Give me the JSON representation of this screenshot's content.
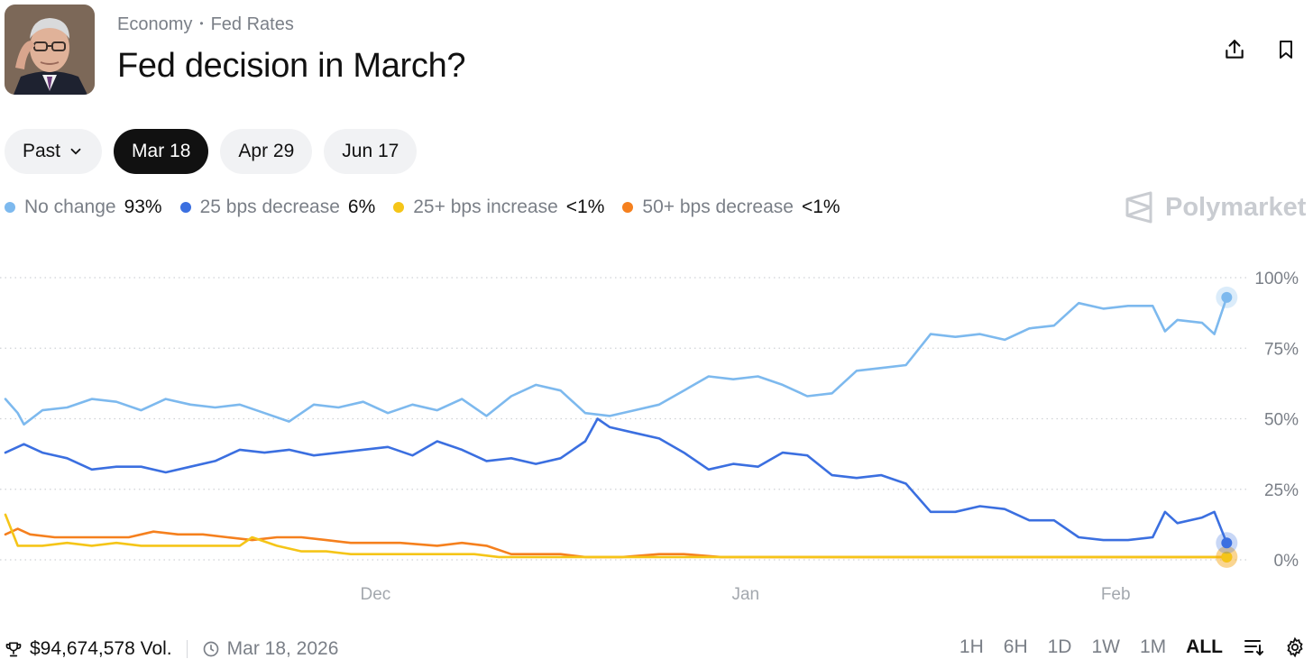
{
  "header": {
    "breadcrumb": [
      "Economy",
      "Fed Rates"
    ],
    "title": "Fed decision in March?"
  },
  "tabs": {
    "past_label": "Past",
    "dates": [
      "Mar 18",
      "Apr 29",
      "Jun 17"
    ],
    "active_index": 0
  },
  "legend": [
    {
      "name": "No change",
      "value": "93%",
      "color": "#7db9ee"
    },
    {
      "name": "25 bps decrease",
      "value": "6%",
      "color": "#3b6fe0"
    },
    {
      "name": "25+ bps increase",
      "value": "<1%",
      "color": "#f5c518"
    },
    {
      "name": "50+ bps decrease",
      "value": "<1%",
      "color": "#f5801e"
    }
  ],
  "brand": "Polymarket",
  "chart_data": {
    "type": "line",
    "title": "",
    "xlabel": "",
    "ylabel": "",
    "x_tick_labels": [
      "Dec",
      "Jan",
      "Feb"
    ],
    "y_tick_labels": [
      "100%",
      "75%",
      "50%",
      "25%",
      "0%"
    ],
    "ylim": [
      0,
      100
    ],
    "xlim": [
      0,
      100
    ],
    "x_ticks": [
      30,
      60,
      90
    ],
    "series": [
      {
        "name": "No change",
        "color": "#7db9ee",
        "points": [
          [
            0,
            57
          ],
          [
            1,
            52
          ],
          [
            1.5,
            48
          ],
          [
            3,
            53
          ],
          [
            5,
            54
          ],
          [
            7,
            57
          ],
          [
            9,
            56
          ],
          [
            11,
            53
          ],
          [
            13,
            57
          ],
          [
            15,
            55
          ],
          [
            17,
            54
          ],
          [
            19,
            55
          ],
          [
            21,
            52
          ],
          [
            23,
            49
          ],
          [
            25,
            55
          ],
          [
            27,
            54
          ],
          [
            29,
            56
          ],
          [
            31,
            52
          ],
          [
            33,
            55
          ],
          [
            35,
            53
          ],
          [
            37,
            57
          ],
          [
            39,
            51
          ],
          [
            41,
            58
          ],
          [
            43,
            62
          ],
          [
            45,
            60
          ],
          [
            47,
            52
          ],
          [
            49,
            51
          ],
          [
            51,
            53
          ],
          [
            53,
            55
          ],
          [
            55,
            60
          ],
          [
            57,
            65
          ],
          [
            59,
            64
          ],
          [
            61,
            65
          ],
          [
            63,
            62
          ],
          [
            65,
            58
          ],
          [
            67,
            59
          ],
          [
            69,
            67
          ],
          [
            71,
            68
          ],
          [
            73,
            69
          ],
          [
            75,
            80
          ],
          [
            77,
            79
          ],
          [
            79,
            80
          ],
          [
            81,
            78
          ],
          [
            83,
            82
          ],
          [
            85,
            83
          ],
          [
            87,
            91
          ],
          [
            89,
            89
          ],
          [
            91,
            90
          ],
          [
            93,
            90
          ],
          [
            94,
            81
          ],
          [
            95,
            85
          ],
          [
            97,
            84
          ],
          [
            98,
            80
          ],
          [
            99,
            93
          ]
        ]
      },
      {
        "name": "25 bps decrease",
        "color": "#3b6fe0",
        "points": [
          [
            0,
            38
          ],
          [
            1.5,
            41
          ],
          [
            3,
            38
          ],
          [
            5,
            36
          ],
          [
            7,
            32
          ],
          [
            9,
            33
          ],
          [
            11,
            33
          ],
          [
            13,
            31
          ],
          [
            15,
            33
          ],
          [
            17,
            35
          ],
          [
            19,
            39
          ],
          [
            21,
            38
          ],
          [
            23,
            39
          ],
          [
            25,
            37
          ],
          [
            27,
            38
          ],
          [
            29,
            39
          ],
          [
            31,
            40
          ],
          [
            33,
            37
          ],
          [
            35,
            42
          ],
          [
            37,
            39
          ],
          [
            39,
            35
          ],
          [
            41,
            36
          ],
          [
            43,
            34
          ],
          [
            45,
            36
          ],
          [
            47,
            42
          ],
          [
            48,
            50
          ],
          [
            49,
            47
          ],
          [
            51,
            45
          ],
          [
            53,
            43
          ],
          [
            55,
            38
          ],
          [
            57,
            32
          ],
          [
            59,
            34
          ],
          [
            61,
            33
          ],
          [
            63,
            38
          ],
          [
            65,
            37
          ],
          [
            67,
            30
          ],
          [
            69,
            29
          ],
          [
            71,
            30
          ],
          [
            73,
            27
          ],
          [
            75,
            17
          ],
          [
            77,
            17
          ],
          [
            79,
            19
          ],
          [
            81,
            18
          ],
          [
            83,
            14
          ],
          [
            85,
            14
          ],
          [
            87,
            8
          ],
          [
            89,
            7
          ],
          [
            91,
            7
          ],
          [
            93,
            8
          ],
          [
            94,
            17
          ],
          [
            95,
            13
          ],
          [
            97,
            15
          ],
          [
            98,
            17
          ],
          [
            99,
            6
          ]
        ]
      },
      {
        "name": "25+ bps increase",
        "color": "#f5c518",
        "points": [
          [
            0,
            16
          ],
          [
            1,
            5
          ],
          [
            3,
            5
          ],
          [
            5,
            6
          ],
          [
            7,
            5
          ],
          [
            9,
            6
          ],
          [
            11,
            5
          ],
          [
            13,
            5
          ],
          [
            15,
            5
          ],
          [
            17,
            5
          ],
          [
            19,
            5
          ],
          [
            20,
            8
          ],
          [
            22,
            5
          ],
          [
            24,
            3
          ],
          [
            26,
            3
          ],
          [
            28,
            2
          ],
          [
            30,
            2
          ],
          [
            33,
            2
          ],
          [
            36,
            2
          ],
          [
            38,
            2
          ],
          [
            40,
            1
          ],
          [
            45,
            1
          ],
          [
            50,
            1
          ],
          [
            55,
            1
          ],
          [
            60,
            1
          ],
          [
            65,
            1
          ],
          [
            70,
            1
          ],
          [
            75,
            1
          ],
          [
            80,
            1
          ],
          [
            85,
            1
          ],
          [
            90,
            1
          ],
          [
            95,
            1
          ],
          [
            99,
            1
          ]
        ]
      },
      {
        "name": "50+ bps decrease",
        "color": "#f5801e",
        "points": [
          [
            0,
            9
          ],
          [
            1,
            11
          ],
          [
            2,
            9
          ],
          [
            4,
            8
          ],
          [
            6,
            8
          ],
          [
            8,
            8
          ],
          [
            10,
            8
          ],
          [
            12,
            10
          ],
          [
            14,
            9
          ],
          [
            16,
            9
          ],
          [
            18,
            8
          ],
          [
            20,
            7
          ],
          [
            22,
            8
          ],
          [
            24,
            8
          ],
          [
            26,
            7
          ],
          [
            28,
            6
          ],
          [
            30,
            6
          ],
          [
            32,
            6
          ],
          [
            35,
            5
          ],
          [
            37,
            6
          ],
          [
            39,
            5
          ],
          [
            41,
            2
          ],
          [
            43,
            2
          ],
          [
            45,
            2
          ],
          [
            47,
            1
          ],
          [
            50,
            1
          ],
          [
            53,
            2
          ],
          [
            55,
            2
          ],
          [
            58,
            1
          ],
          [
            60,
            1
          ],
          [
            65,
            1
          ],
          [
            70,
            1
          ],
          [
            75,
            1
          ],
          [
            80,
            1
          ],
          [
            85,
            1
          ],
          [
            90,
            1
          ],
          [
            95,
            1
          ],
          [
            99,
            1
          ]
        ]
      }
    ]
  },
  "footer": {
    "volume": "$94,674,578 Vol.",
    "date": "Mar 18, 2026"
  },
  "ranges": [
    "1H",
    "6H",
    "1D",
    "1W",
    "1M",
    "ALL"
  ],
  "active_range": "ALL"
}
